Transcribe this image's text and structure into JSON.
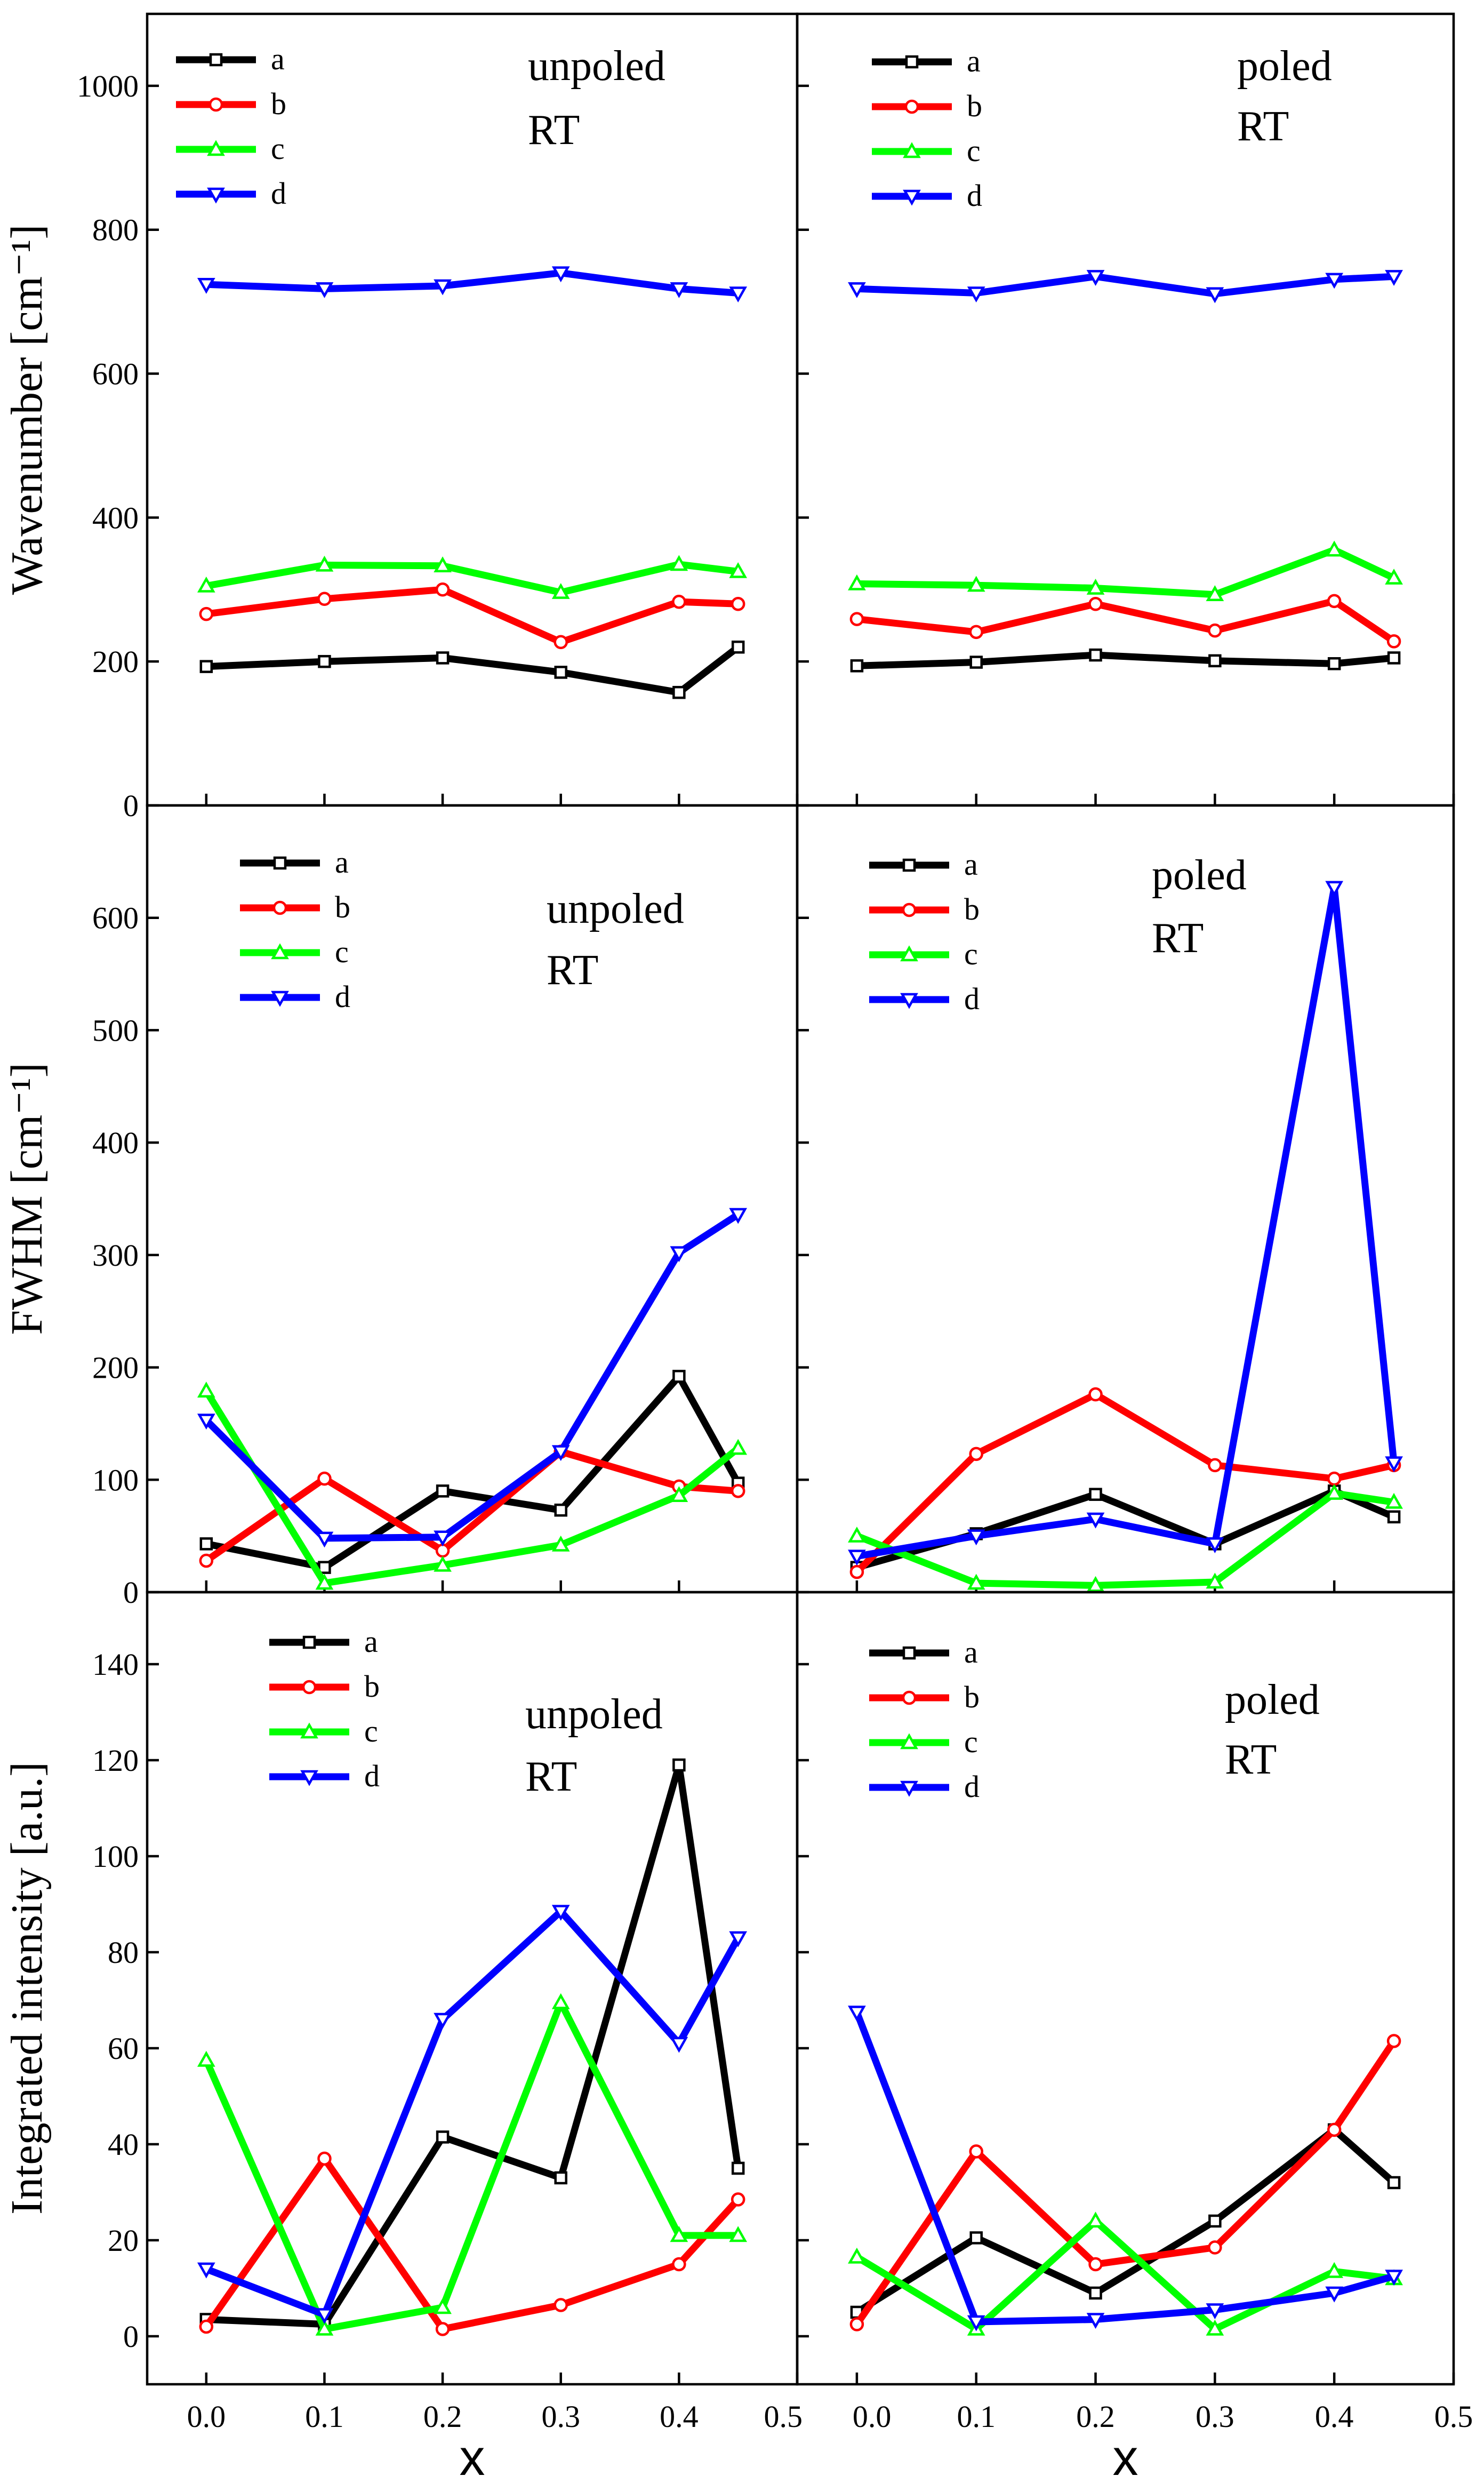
{
  "figure": {
    "xlabel": "x",
    "x_tick_labels": [
      "0.0",
      "0.1",
      "0.2",
      "0.3",
      "0.4",
      "0.5"
    ]
  },
  "colors": {
    "a": "#000000",
    "b": "#ff0000",
    "c": "#00ff00",
    "d": "#0000ff"
  },
  "markers": {
    "a": "square",
    "b": "circle",
    "c": "triangle-up",
    "d": "triangle-down"
  },
  "chart_data": [
    {
      "type": "line",
      "id": "wavenumber-unpoled",
      "ylabel": "Wavenumber [cm⁻¹]",
      "annotation": [
        "unpoled",
        "RT"
      ],
      "x": [
        0.0,
        0.1,
        0.2,
        0.3,
        0.4,
        0.45
      ],
      "xlim": [
        -0.05,
        0.5
      ],
      "ylim": [
        0,
        1100
      ],
      "yticks": [
        0,
        200,
        400,
        600,
        800,
        1000
      ],
      "series": [
        {
          "name": "a",
          "values": [
            193,
            200,
            205,
            185,
            157,
            220
          ]
        },
        {
          "name": "b",
          "values": [
            266,
            287,
            300,
            227,
            283,
            280
          ]
        },
        {
          "name": "c",
          "values": [
            305,
            334,
            333,
            296,
            335,
            325
          ]
        },
        {
          "name": "d",
          "values": [
            724,
            718,
            722,
            740,
            718,
            712
          ]
        }
      ]
    },
    {
      "type": "line",
      "id": "wavenumber-poled",
      "ylabel": "",
      "annotation": [
        "poled",
        "RT"
      ],
      "x": [
        0.0,
        0.1,
        0.2,
        0.3,
        0.4,
        0.45
      ],
      "xlim": [
        -0.05,
        0.5
      ],
      "ylim": [
        0,
        1100
      ],
      "yticks": [
        0,
        200,
        400,
        600,
        800,
        1000
      ],
      "series": [
        {
          "name": "a",
          "values": [
            194,
            199,
            209,
            201,
            197,
            205
          ]
        },
        {
          "name": "b",
          "values": [
            259,
            241,
            280,
            243,
            284,
            228
          ]
        },
        {
          "name": "c",
          "values": [
            308,
            306,
            302,
            293,
            355,
            316
          ]
        },
        {
          "name": "d",
          "values": [
            718,
            712,
            735,
            711,
            731,
            735
          ]
        }
      ]
    },
    {
      "type": "line",
      "id": "fwhm-unpoled",
      "ylabel": "FWHM [cm⁻¹]",
      "annotation": [
        "unpoled",
        "RT"
      ],
      "x": [
        0.0,
        0.1,
        0.2,
        0.3,
        0.4,
        0.45
      ],
      "xlim": [
        -0.05,
        0.5
      ],
      "ylim": [
        0,
        700
      ],
      "yticks": [
        0,
        100,
        200,
        300,
        400,
        500,
        600
      ],
      "series": [
        {
          "name": "a",
          "values": [
            43,
            22,
            90,
            73,
            192,
            97
          ]
        },
        {
          "name": "b",
          "values": [
            28,
            101,
            37,
            125,
            94,
            90
          ]
        },
        {
          "name": "c",
          "values": [
            179,
            8,
            24,
            42,
            86,
            128
          ]
        },
        {
          "name": "d",
          "values": [
            153,
            48,
            49,
            125,
            302,
            336
          ]
        }
      ]
    },
    {
      "type": "line",
      "id": "fwhm-poled",
      "ylabel": "",
      "annotation": [
        "poled",
        "RT"
      ],
      "x": [
        0.0,
        0.1,
        0.2,
        0.3,
        0.4,
        0.45
      ],
      "xlim": [
        -0.05,
        0.5
      ],
      "ylim": [
        0,
        700
      ],
      "yticks": [
        0,
        100,
        200,
        300,
        400,
        500,
        600
      ],
      "series": [
        {
          "name": "a",
          "values": [
            22,
            52,
            87,
            43,
            90,
            67
          ]
        },
        {
          "name": "b",
          "values": [
            18,
            123,
            176,
            113,
            101,
            113
          ]
        },
        {
          "name": "c",
          "values": [
            50,
            8,
            6,
            9,
            88,
            80
          ]
        },
        {
          "name": "d",
          "values": [
            32,
            50,
            65,
            43,
            627,
            115
          ]
        }
      ]
    },
    {
      "type": "line",
      "id": "intensity-unpoled",
      "ylabel": "Integrated intensity [a.u.]",
      "annotation": [
        "unpoled",
        "RT"
      ],
      "x": [
        0.0,
        0.1,
        0.2,
        0.3,
        0.4,
        0.45
      ],
      "xlim": [
        -0.05,
        0.5
      ],
      "ylim": [
        -10,
        155
      ],
      "yticks": [
        0,
        20,
        40,
        60,
        80,
        100,
        120,
        140
      ],
      "series": [
        {
          "name": "a",
          "values": [
            3.5,
            2.5,
            41.5,
            33,
            119,
            35
          ]
        },
        {
          "name": "b",
          "values": [
            2,
            37,
            1.5,
            6.5,
            15,
            28.5
          ]
        },
        {
          "name": "c",
          "values": [
            57.5,
            1.5,
            6,
            69.5,
            21,
            21
          ]
        },
        {
          "name": "d",
          "values": [
            14,
            4.5,
            66,
            88.5,
            61,
            83
          ]
        }
      ]
    },
    {
      "type": "line",
      "id": "intensity-poled",
      "ylabel": "",
      "annotation": [
        "poled",
        "RT"
      ],
      "x": [
        0.0,
        0.1,
        0.2,
        0.3,
        0.4,
        0.45
      ],
      "xlim": [
        -0.05,
        0.5
      ],
      "ylim": [
        -10,
        155
      ],
      "yticks": [
        0,
        20,
        40,
        60,
        80,
        100,
        120,
        140
      ],
      "series": [
        {
          "name": "a",
          "values": [
            5,
            20.5,
            9,
            24,
            43,
            32
          ]
        },
        {
          "name": "b",
          "values": [
            2.5,
            38.5,
            15,
            18.5,
            43,
            61.5
          ]
        },
        {
          "name": "c",
          "values": [
            16.5,
            1.5,
            24,
            1.5,
            13.5,
            12
          ]
        },
        {
          "name": "d",
          "values": [
            67.5,
            3,
            3.5,
            5.5,
            9,
            12.5
          ]
        }
      ]
    }
  ]
}
